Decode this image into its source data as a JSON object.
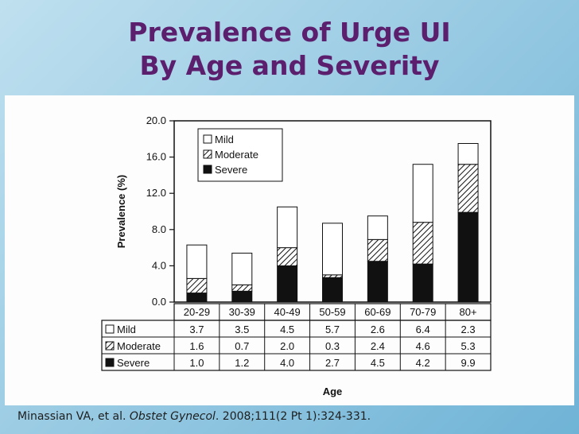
{
  "slide": {
    "title_line1": "Prevalence of Urge UI",
    "title_line2": "By Age and Severity"
  },
  "citation": {
    "authors": "Minassian VA, et al. ",
    "journal": "Obstet Gynecol",
    "details": ". 2008;111(2 Pt 1):324-331."
  },
  "chart_data": {
    "type": "bar",
    "stacked": true,
    "categories": [
      "20-29",
      "30-39",
      "40-49",
      "50-59",
      "60-69",
      "70-79",
      "80+"
    ],
    "series": [
      {
        "name": "Severe",
        "values": [
          1.0,
          1.2,
          4.0,
          2.7,
          4.5,
          4.2,
          9.9
        ],
        "pattern": "solid-black"
      },
      {
        "name": "Moderate",
        "values": [
          1.6,
          0.7,
          2.0,
          0.3,
          2.4,
          4.6,
          5.3
        ],
        "pattern": "hatched"
      },
      {
        "name": "Mild",
        "values": [
          3.7,
          3.5,
          4.5,
          5.7,
          2.6,
          6.4,
          2.3
        ],
        "pattern": "white"
      }
    ],
    "legend_order": [
      "Mild",
      "Moderate",
      "Severe"
    ],
    "legend_placement": "top-left",
    "yticks": [
      "0.0",
      "4.0",
      "8.0",
      "12.0",
      "16.0",
      "20.0"
    ],
    "ylim": [
      0,
      20
    ],
    "ylabel": "Prevalence (%)",
    "xlabel": "Age",
    "table": {
      "rows": [
        {
          "label": "Mild",
          "values": [
            "3.7",
            "3.5",
            "4.5",
            "5.7",
            "2.6",
            "6.4",
            "2.3"
          ]
        },
        {
          "label": "Moderate",
          "values": [
            "1.6",
            "0.7",
            "2.0",
            "0.3",
            "2.4",
            "4.6",
            "5.3"
          ]
        },
        {
          "label": "Severe",
          "values": [
            "1.0",
            "1.2",
            "4.0",
            "2.7",
            "4.5",
            "4.2",
            "9.9"
          ]
        }
      ]
    }
  }
}
